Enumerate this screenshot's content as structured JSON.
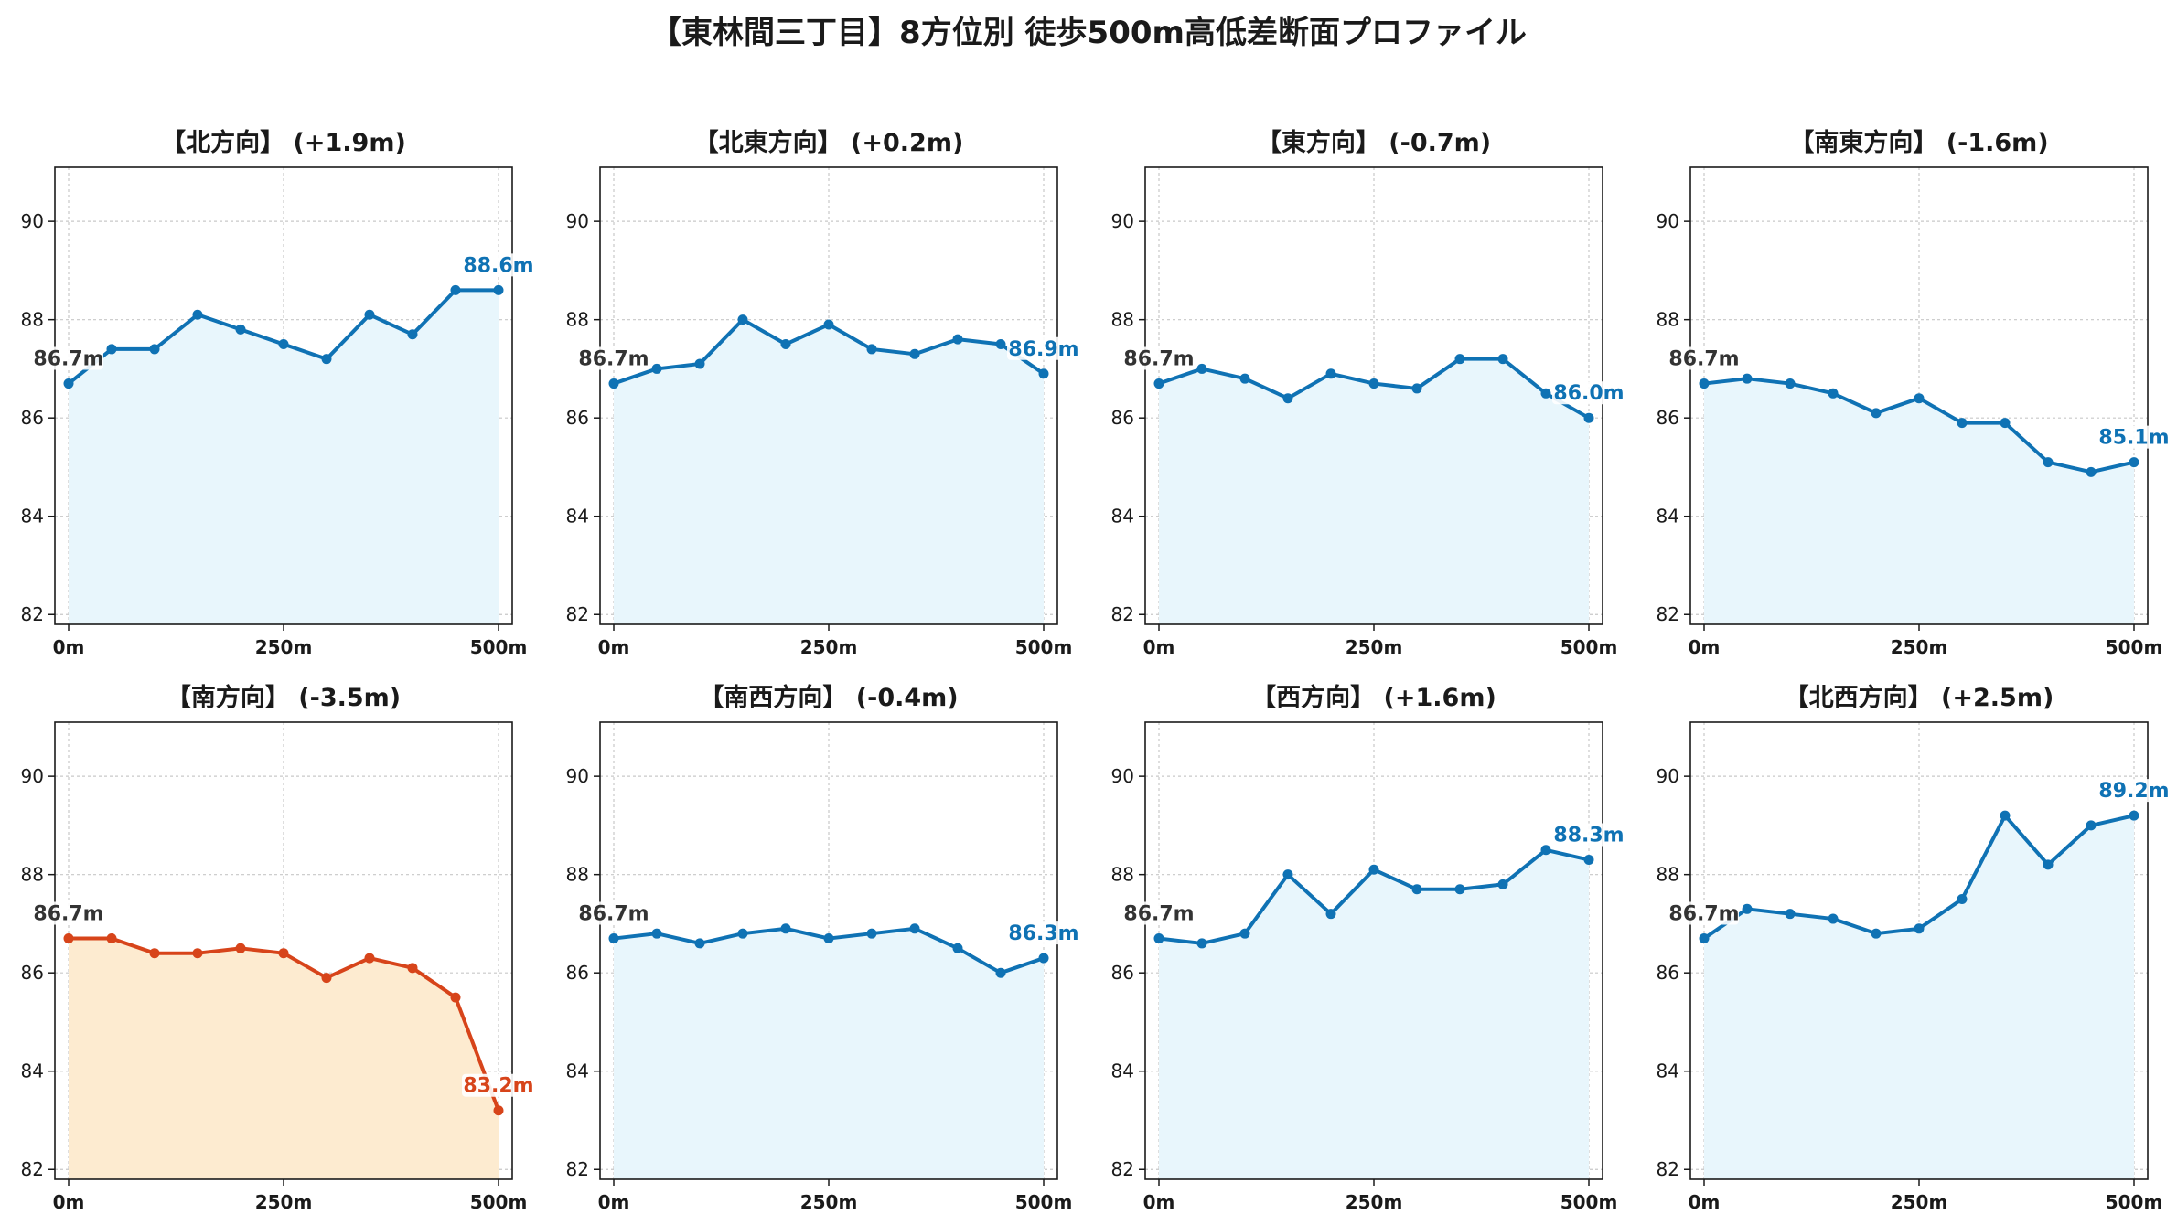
{
  "title": "【東林間三丁目】8方位別 徒歩500m高低差断面プロファイル",
  "colors": {
    "line_blue": "#0f72b4",
    "fill_blue": "#e8f6fc",
    "line_red": "#d7441a",
    "fill_orange": "#fdebd0",
    "grid": "#c8c8c8"
  },
  "chart_data": [
    {
      "type": "line",
      "title": "【北方向】 (+1.9m)",
      "x": [
        0,
        50,
        100,
        150,
        200,
        250,
        300,
        350,
        400,
        450,
        500
      ],
      "values": [
        86.7,
        87.4,
        87.4,
        88.1,
        87.8,
        87.5,
        87.2,
        88.1,
        87.7,
        88.6,
        88.6
      ],
      "start_label": "86.7m",
      "end_label": "88.6m",
      "highlight": false,
      "ylim": [
        81.8,
        91.1
      ],
      "yticks": [
        82,
        84,
        86,
        88,
        90
      ],
      "xticks": [
        "0m",
        "250m",
        "500m"
      ],
      "grid": true
    },
    {
      "type": "line",
      "title": "【北東方向】 (+0.2m)",
      "x": [
        0,
        50,
        100,
        150,
        200,
        250,
        300,
        350,
        400,
        450,
        500
      ],
      "values": [
        86.7,
        87.0,
        87.1,
        88.0,
        87.5,
        87.9,
        87.4,
        87.3,
        87.6,
        87.5,
        86.9
      ],
      "start_label": "86.7m",
      "end_label": "86.9m",
      "highlight": false,
      "ylim": [
        81.8,
        91.1
      ],
      "yticks": [
        82,
        84,
        86,
        88,
        90
      ],
      "xticks": [
        "0m",
        "250m",
        "500m"
      ],
      "grid": true
    },
    {
      "type": "line",
      "title": "【東方向】 (-0.7m)",
      "x": [
        0,
        50,
        100,
        150,
        200,
        250,
        300,
        350,
        400,
        450,
        500
      ],
      "values": [
        86.7,
        87.0,
        86.8,
        86.4,
        86.9,
        86.7,
        86.6,
        87.2,
        87.2,
        86.5,
        86.0
      ],
      "start_label": "86.7m",
      "end_label": "86.0m",
      "highlight": false,
      "ylim": [
        81.8,
        91.1
      ],
      "yticks": [
        82,
        84,
        86,
        88,
        90
      ],
      "xticks": [
        "0m",
        "250m",
        "500m"
      ],
      "grid": true
    },
    {
      "type": "line",
      "title": "【南東方向】 (-1.6m)",
      "x": [
        0,
        50,
        100,
        150,
        200,
        250,
        300,
        350,
        400,
        450,
        500
      ],
      "values": [
        86.7,
        86.8,
        86.7,
        86.5,
        86.1,
        86.4,
        85.9,
        85.9,
        85.1,
        84.9,
        85.1
      ],
      "start_label": "86.7m",
      "end_label": "85.1m",
      "highlight": false,
      "ylim": [
        81.8,
        91.1
      ],
      "yticks": [
        82,
        84,
        86,
        88,
        90
      ],
      "xticks": [
        "0m",
        "250m",
        "500m"
      ],
      "grid": true
    },
    {
      "type": "line",
      "title": "【南方向】 (-3.5m)",
      "x": [
        0,
        50,
        100,
        150,
        200,
        250,
        300,
        350,
        400,
        450,
        500
      ],
      "values": [
        86.7,
        86.7,
        86.4,
        86.4,
        86.5,
        86.4,
        85.9,
        86.3,
        86.1,
        85.5,
        83.2
      ],
      "start_label": "86.7m",
      "end_label": "83.2m",
      "highlight": true,
      "ylim": [
        81.8,
        91.1
      ],
      "yticks": [
        82,
        84,
        86,
        88,
        90
      ],
      "xticks": [
        "0m",
        "250m",
        "500m"
      ],
      "grid": true
    },
    {
      "type": "line",
      "title": "【南西方向】 (-0.4m)",
      "x": [
        0,
        50,
        100,
        150,
        200,
        250,
        300,
        350,
        400,
        450,
        500
      ],
      "values": [
        86.7,
        86.8,
        86.6,
        86.8,
        86.9,
        86.7,
        86.8,
        86.9,
        86.5,
        86.0,
        86.3
      ],
      "start_label": "86.7m",
      "end_label": "86.3m",
      "highlight": false,
      "ylim": [
        81.8,
        91.1
      ],
      "yticks": [
        82,
        84,
        86,
        88,
        90
      ],
      "xticks": [
        "0m",
        "250m",
        "500m"
      ],
      "grid": true
    },
    {
      "type": "line",
      "title": "【西方向】 (+1.6m)",
      "x": [
        0,
        50,
        100,
        150,
        200,
        250,
        300,
        350,
        400,
        450,
        500
      ],
      "values": [
        86.7,
        86.6,
        86.8,
        88.0,
        87.2,
        88.1,
        87.7,
        87.7,
        87.8,
        88.5,
        88.3
      ],
      "start_label": "86.7m",
      "end_label": "88.3m",
      "highlight": false,
      "ylim": [
        81.8,
        91.1
      ],
      "yticks": [
        82,
        84,
        86,
        88,
        90
      ],
      "xticks": [
        "0m",
        "250m",
        "500m"
      ],
      "grid": true
    },
    {
      "type": "line",
      "title": "【北西方向】 (+2.5m)",
      "x": [
        0,
        50,
        100,
        150,
        200,
        250,
        300,
        350,
        400,
        450,
        500
      ],
      "values": [
        86.7,
        87.3,
        87.2,
        87.1,
        86.8,
        86.9,
        87.5,
        89.2,
        88.2,
        89.0,
        89.2
      ],
      "start_label": "86.7m",
      "end_label": "89.2m",
      "highlight": false,
      "ylim": [
        81.8,
        91.1
      ],
      "yticks": [
        82,
        84,
        86,
        88,
        90
      ],
      "xticks": [
        "0m",
        "250m",
        "500m"
      ],
      "grid": true
    }
  ]
}
